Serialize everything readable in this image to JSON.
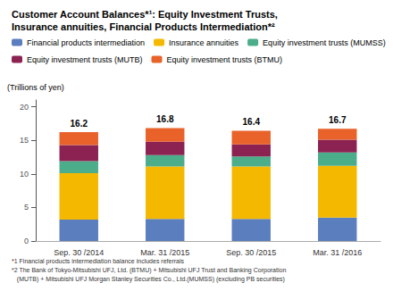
{
  "chart_data": {
    "type": "bar",
    "stacked": true,
    "title": "Customer Account Balances*¹: Equity Investment Trusts,\nInsurance annuities, Financial Products Intermediation*²",
    "ylabel": "(Trillions of yen)",
    "categories": [
      "Sep. 30 /2014",
      "Mar. 31 /2015",
      "Sep. 30 /2015",
      "Mar. 31 /2016"
    ],
    "series": [
      {
        "name": "Financial products intermediation",
        "color": "#5b7fbe",
        "values": [
          3.2,
          3.3,
          3.3,
          3.5
        ]
      },
      {
        "name": "Insurance annuities",
        "color": "#f5b800",
        "values": [
          6.9,
          7.8,
          7.8,
          7.7
        ]
      },
      {
        "name": "Equity investment trusts (MUMSS)",
        "color": "#4cad8a",
        "values": [
          1.8,
          1.7,
          1.5,
          2.0
        ]
      },
      {
        "name": "Equity investment trusts (MUTB)",
        "color": "#8b2252",
        "values": [
          2.4,
          2.0,
          1.8,
          1.9
        ]
      },
      {
        "name": "Equity investment trusts (BTMU)",
        "color": "#e8622a",
        "values": [
          1.9,
          2.0,
          2.0,
          1.6
        ]
      }
    ],
    "totals": [
      16.2,
      16.8,
      16.4,
      16.7
    ],
    "ylim": [
      0,
      21
    ],
    "yticks": [
      0,
      5,
      10,
      15,
      20
    ],
    "grid": false,
    "legend": "top",
    "footnotes": [
      "*1 Financial products intermediation balance includes referrals",
      "*2 The Bank of Tokyo-Mitsubishi UFJ, Ltd. (BTMU) + Mitsubishi UFJ Trust and Banking Corporation",
      "   (MUTB) + Mitsubishi UFJ Morgan Stanley Securities Co., Ltd.(MUMSS) (excluding PB securities)"
    ]
  }
}
